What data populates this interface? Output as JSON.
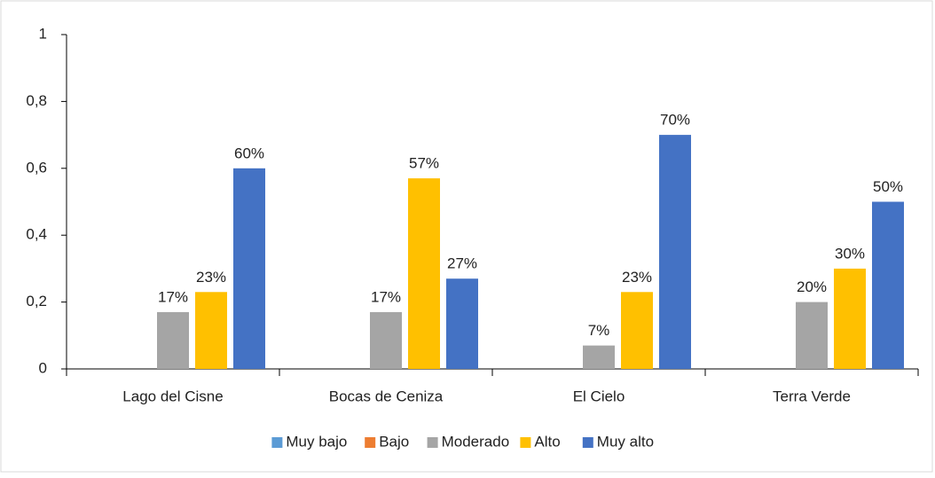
{
  "chart_data": {
    "type": "bar",
    "categories": [
      "Lago del Cisne",
      "Bocas de Ceniza",
      "El Cielo",
      "Terra Verde"
    ],
    "series": [
      {
        "name": "Muy bajo",
        "color": "#5b9bd5",
        "values": [
          null,
          null,
          null,
          null
        ]
      },
      {
        "name": "Bajo",
        "color": "#ed7d31",
        "values": [
          null,
          null,
          null,
          null
        ]
      },
      {
        "name": "Moderado",
        "color": "#a5a5a5",
        "values": [
          0.17,
          0.17,
          0.07,
          0.2
        ],
        "value_labels": [
          "17%",
          "17%",
          "7%",
          "20%"
        ]
      },
      {
        "name": "Alto",
        "color": "#ffc000",
        "values": [
          0.23,
          0.57,
          0.23,
          0.3
        ],
        "value_labels": [
          "23%",
          "57%",
          "23%",
          "30%"
        ]
      },
      {
        "name": "Muy alto",
        "color": "#4472c4",
        "values": [
          0.6,
          0.27,
          0.7,
          0.5
        ],
        "value_labels": [
          "60%",
          "27%",
          "70%",
          "50%"
        ]
      }
    ],
    "ylim": [
      0,
      1
    ],
    "yticks": [
      0,
      {
        "value": 0.2,
        "label": "0,2"
      },
      {
        "value": 0.4,
        "label": "0,4"
      },
      {
        "value": 0.6,
        "label": "0,6"
      },
      {
        "value": 0.8,
        "label": "0,8"
      },
      1
    ],
    "legend": "bottom"
  }
}
